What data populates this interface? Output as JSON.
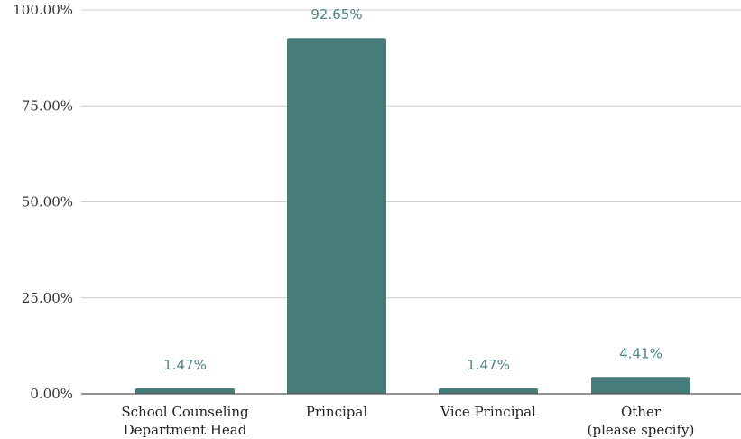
{
  "chart_data": {
    "type": "bar",
    "categories": [
      [
        "School Counseling",
        "Department Head"
      ],
      [
        "Principal"
      ],
      [
        "Vice Principal"
      ],
      [
        "Other",
        "(please specify)"
      ]
    ],
    "values": [
      1.47,
      92.65,
      1.47,
      4.41
    ],
    "data_labels": [
      "1.47%",
      "92.65%",
      "1.47%",
      "4.41%"
    ],
    "ylim": [
      0,
      100
    ],
    "yticks": [
      0,
      25,
      50,
      75,
      100
    ],
    "ytick_labels": [
      "0.00%",
      "25.00%",
      "50.00%",
      "75.00%",
      "100.00%"
    ],
    "grid": true,
    "bar_color": "#467c7a",
    "label_color": "#4e8582",
    "title": "",
    "xlabel": "",
    "ylabel": ""
  }
}
